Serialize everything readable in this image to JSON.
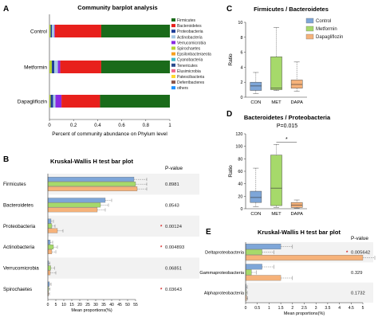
{
  "colors": {
    "firmicutes": "#1a6b1a",
    "bacteroidetes": "#e8201c",
    "proteobacteria": "#1f3f99",
    "actinobacteria": "#a5c8e4",
    "verrucomicrobia": "#8a2be2",
    "spirochaetes": "#b5d334",
    "control": "#7ea6d8",
    "metformin": "#a6d96a",
    "dapagliflozin": "#f6b27a",
    "grey_band": "#f2f2f2"
  },
  "chart_data": [
    {
      "panel": "A",
      "type": "bar",
      "orientation": "horizontal-stacked",
      "title": "Community barplot analysis",
      "xlabel": "Percent of community abundance on Phylum level",
      "xlim": [
        0,
        1
      ],
      "x_ticks": [
        "0",
        "0.2",
        "0.4",
        "0.6",
        "0.8",
        "1"
      ],
      "categories": [
        "Control",
        "Metformin",
        "Dapagliflozin"
      ],
      "legend_position": "right",
      "legend": [
        "Firmicutes",
        "Bacteroidetes",
        "Proteobacteria",
        "Actinobacteria",
        "Verrucomicrobia",
        "Spirochaetes",
        "Epsilonbacteraeota",
        "Cyanobacteria",
        "Tenericutes",
        "Elusimicrobia",
        "Patescibacteria",
        "Deferribacteres",
        "others"
      ],
      "legend_colors": [
        "#1a6b1a",
        "#e8201c",
        "#1f3f99",
        "#a5c8e4",
        "#8a2be2",
        "#b5d334",
        "#f7a01e",
        "#3fb8c9",
        "#2a4b8d",
        "#f06a8f",
        "#ffd92f",
        "#8c564b",
        "#1e90ff"
      ],
      "series": [
        {
          "name": "Control",
          "segments": [
            {
              "phylum": "Spirochaetes",
              "value": 0.01,
              "color": "#b5d334"
            },
            {
              "phylum": "Proteobacteria",
              "value": 0.01,
              "color": "#1f3f99"
            },
            {
              "phylum": "Actinobacteria",
              "value": 0.02,
              "color": "#a5c8e4"
            },
            {
              "phylum": "Verrucomicrobia",
              "value": 0.005,
              "color": "#8a2be2"
            },
            {
              "phylum": "Bacteroidetes",
              "value": 0.385,
              "color": "#e8201c"
            },
            {
              "phylum": "Firmicutes",
              "value": 0.57,
              "color": "#1a6b1a"
            }
          ]
        },
        {
          "name": "Metformin",
          "segments": [
            {
              "phylum": "Spirochaetes",
              "value": 0.02,
              "color": "#b5d334"
            },
            {
              "phylum": "Proteobacteria",
              "value": 0.02,
              "color": "#1f3f99"
            },
            {
              "phylum": "Actinobacteria",
              "value": 0.03,
              "color": "#a5c8e4"
            },
            {
              "phylum": "Verrucomicrobia",
              "value": 0.02,
              "color": "#8a2be2"
            },
            {
              "phylum": "Bacteroidetes",
              "value": 0.34,
              "color": "#e8201c"
            },
            {
              "phylum": "Firmicutes",
              "value": 0.57,
              "color": "#1a6b1a"
            }
          ]
        },
        {
          "name": "Dapagliflozin",
          "segments": [
            {
              "phylum": "Spirochaetes",
              "value": 0.01,
              "color": "#b5d334"
            },
            {
              "phylum": "Proteobacteria",
              "value": 0.02,
              "color": "#1f3f99"
            },
            {
              "phylum": "Actinobacteria",
              "value": 0.02,
              "color": "#a5c8e4"
            },
            {
              "phylum": "Verrucomicrobia",
              "value": 0.05,
              "color": "#8a2be2"
            },
            {
              "phylum": "Bacteroidetes",
              "value": 0.32,
              "color": "#e8201c"
            },
            {
              "phylum": "Firmicutes",
              "value": 0.58,
              "color": "#1a6b1a"
            }
          ]
        }
      ]
    },
    {
      "panel": "B",
      "type": "bar",
      "orientation": "horizontal-grouped",
      "title": "Kruskal-Wallis H test bar plot",
      "xlabel": "Mean proportions(%)",
      "xlim": [
        0,
        55
      ],
      "x_ticks": [
        "0",
        "5",
        "10",
        "15",
        "20",
        "25",
        "30",
        "35",
        "40",
        "45",
        "50",
        "55"
      ],
      "pvalue_header": "P-value",
      "categories": [
        "Firmicutes",
        "Bacteroidetes",
        "Proteobacteria",
        "Actinobacteria",
        "Verrucomicrobia",
        "Spirochaetes"
      ],
      "p_values": [
        "0.8981",
        "0.8543",
        "0.00124",
        "0.004893",
        "0.06851",
        "0.03643"
      ],
      "significant": [
        false,
        false,
        true,
        true,
        false,
        true
      ],
      "series": [
        {
          "group": "Control",
          "values": [
            54,
            36,
            2,
            1.5,
            0.5,
            1.0
          ],
          "errors": [
            8,
            4,
            1.5,
            1.5,
            0.8,
            1.0
          ]
        },
        {
          "group": "Metformin",
          "values": [
            55,
            33,
            2.5,
            3.5,
            1.8,
            0.5
          ],
          "errors": [
            7,
            5,
            2,
            2.5,
            2.5,
            0.8
          ]
        },
        {
          "group": "Dapagliflozin",
          "values": [
            56,
            31,
            6,
            2.5,
            1.5,
            0.4
          ],
          "errors": [
            6,
            5,
            3.5,
            2.5,
            3.5,
            0.6
          ]
        }
      ]
    },
    {
      "panel": "C",
      "type": "box",
      "title": "Firmicutes / Bacteroidetes",
      "ylabel": "Ratio",
      "ylim": [
        0,
        10
      ],
      "y_ticks": [
        "0",
        "2",
        "4",
        "6",
        "8",
        "10"
      ],
      "categories": [
        "CON",
        "MET",
        "DAPA"
      ],
      "legend": [
        "Control",
        "Metformin",
        "Dapagliflozin"
      ],
      "legend_position": "top-right",
      "boxes": [
        {
          "min": 0.5,
          "q1": 0.9,
          "median": 1.5,
          "q3": 2.0,
          "max": 3.3
        },
        {
          "min": 0.9,
          "q1": 1.0,
          "median": 1.2,
          "q3": 5.4,
          "max": 9.3
        },
        {
          "min": 0.8,
          "q1": 1.2,
          "median": 1.7,
          "q3": 2.3,
          "max": 4.7
        }
      ]
    },
    {
      "panel": "D",
      "type": "box",
      "title": "Bacteroidetes / Proteobacteria",
      "subtitle": "P=0.015",
      "ylabel": "Ratio",
      "ylim": [
        0,
        120
      ],
      "y_ticks": [
        "0",
        "20",
        "40",
        "60",
        "80",
        "100",
        "120"
      ],
      "categories": [
        "CON",
        "MET",
        "DAPA"
      ],
      "significance": {
        "between": [
          "MET",
          "DAPA"
        ],
        "label": "*"
      },
      "boxes": [
        {
          "min": 3,
          "q1": 10,
          "median": 18,
          "q3": 28,
          "max": 65
        },
        {
          "min": 2,
          "q1": 5,
          "median": 33,
          "q3": 86,
          "max": 103
        },
        {
          "min": 1,
          "q1": 2,
          "median": 6,
          "q3": 10,
          "max": 14
        }
      ]
    },
    {
      "panel": "E",
      "type": "bar",
      "orientation": "horizontal-grouped",
      "title": "Kruskal-Wallis H test bar plot",
      "xlabel": "Mean proportions(%)",
      "xlim": [
        0,
        5
      ],
      "x_ticks": [
        "0",
        "0.5",
        "1",
        "1.5",
        "2",
        "2.5",
        "3",
        "3.5",
        "4",
        "4.5",
        "5"
      ],
      "pvalue_header": "P-value",
      "categories": [
        "Deltaproteobacteria",
        "Gammaproteobacteria",
        "Alphaproteobacteria"
      ],
      "p_values": [
        "0.005642",
        "0.329",
        "0.1732"
      ],
      "significant": [
        true,
        false,
        false
      ],
      "series": [
        {
          "group": "Control",
          "values": [
            1.5,
            0.7,
            0.02
          ],
          "errors": [
            0.5,
            0.5,
            0.05
          ]
        },
        {
          "group": "Metformin",
          "values": [
            0.7,
            0.25,
            0.02
          ],
          "errors": [
            0.5,
            0.2,
            0.05
          ]
        },
        {
          "group": "Dapagliflozin",
          "values": [
            5.0,
            1.5,
            0.04
          ],
          "errors": [
            1.0,
            0.5,
            0.05
          ]
        }
      ]
    }
  ],
  "panel_labels": [
    "A",
    "B",
    "C",
    "D",
    "E"
  ]
}
